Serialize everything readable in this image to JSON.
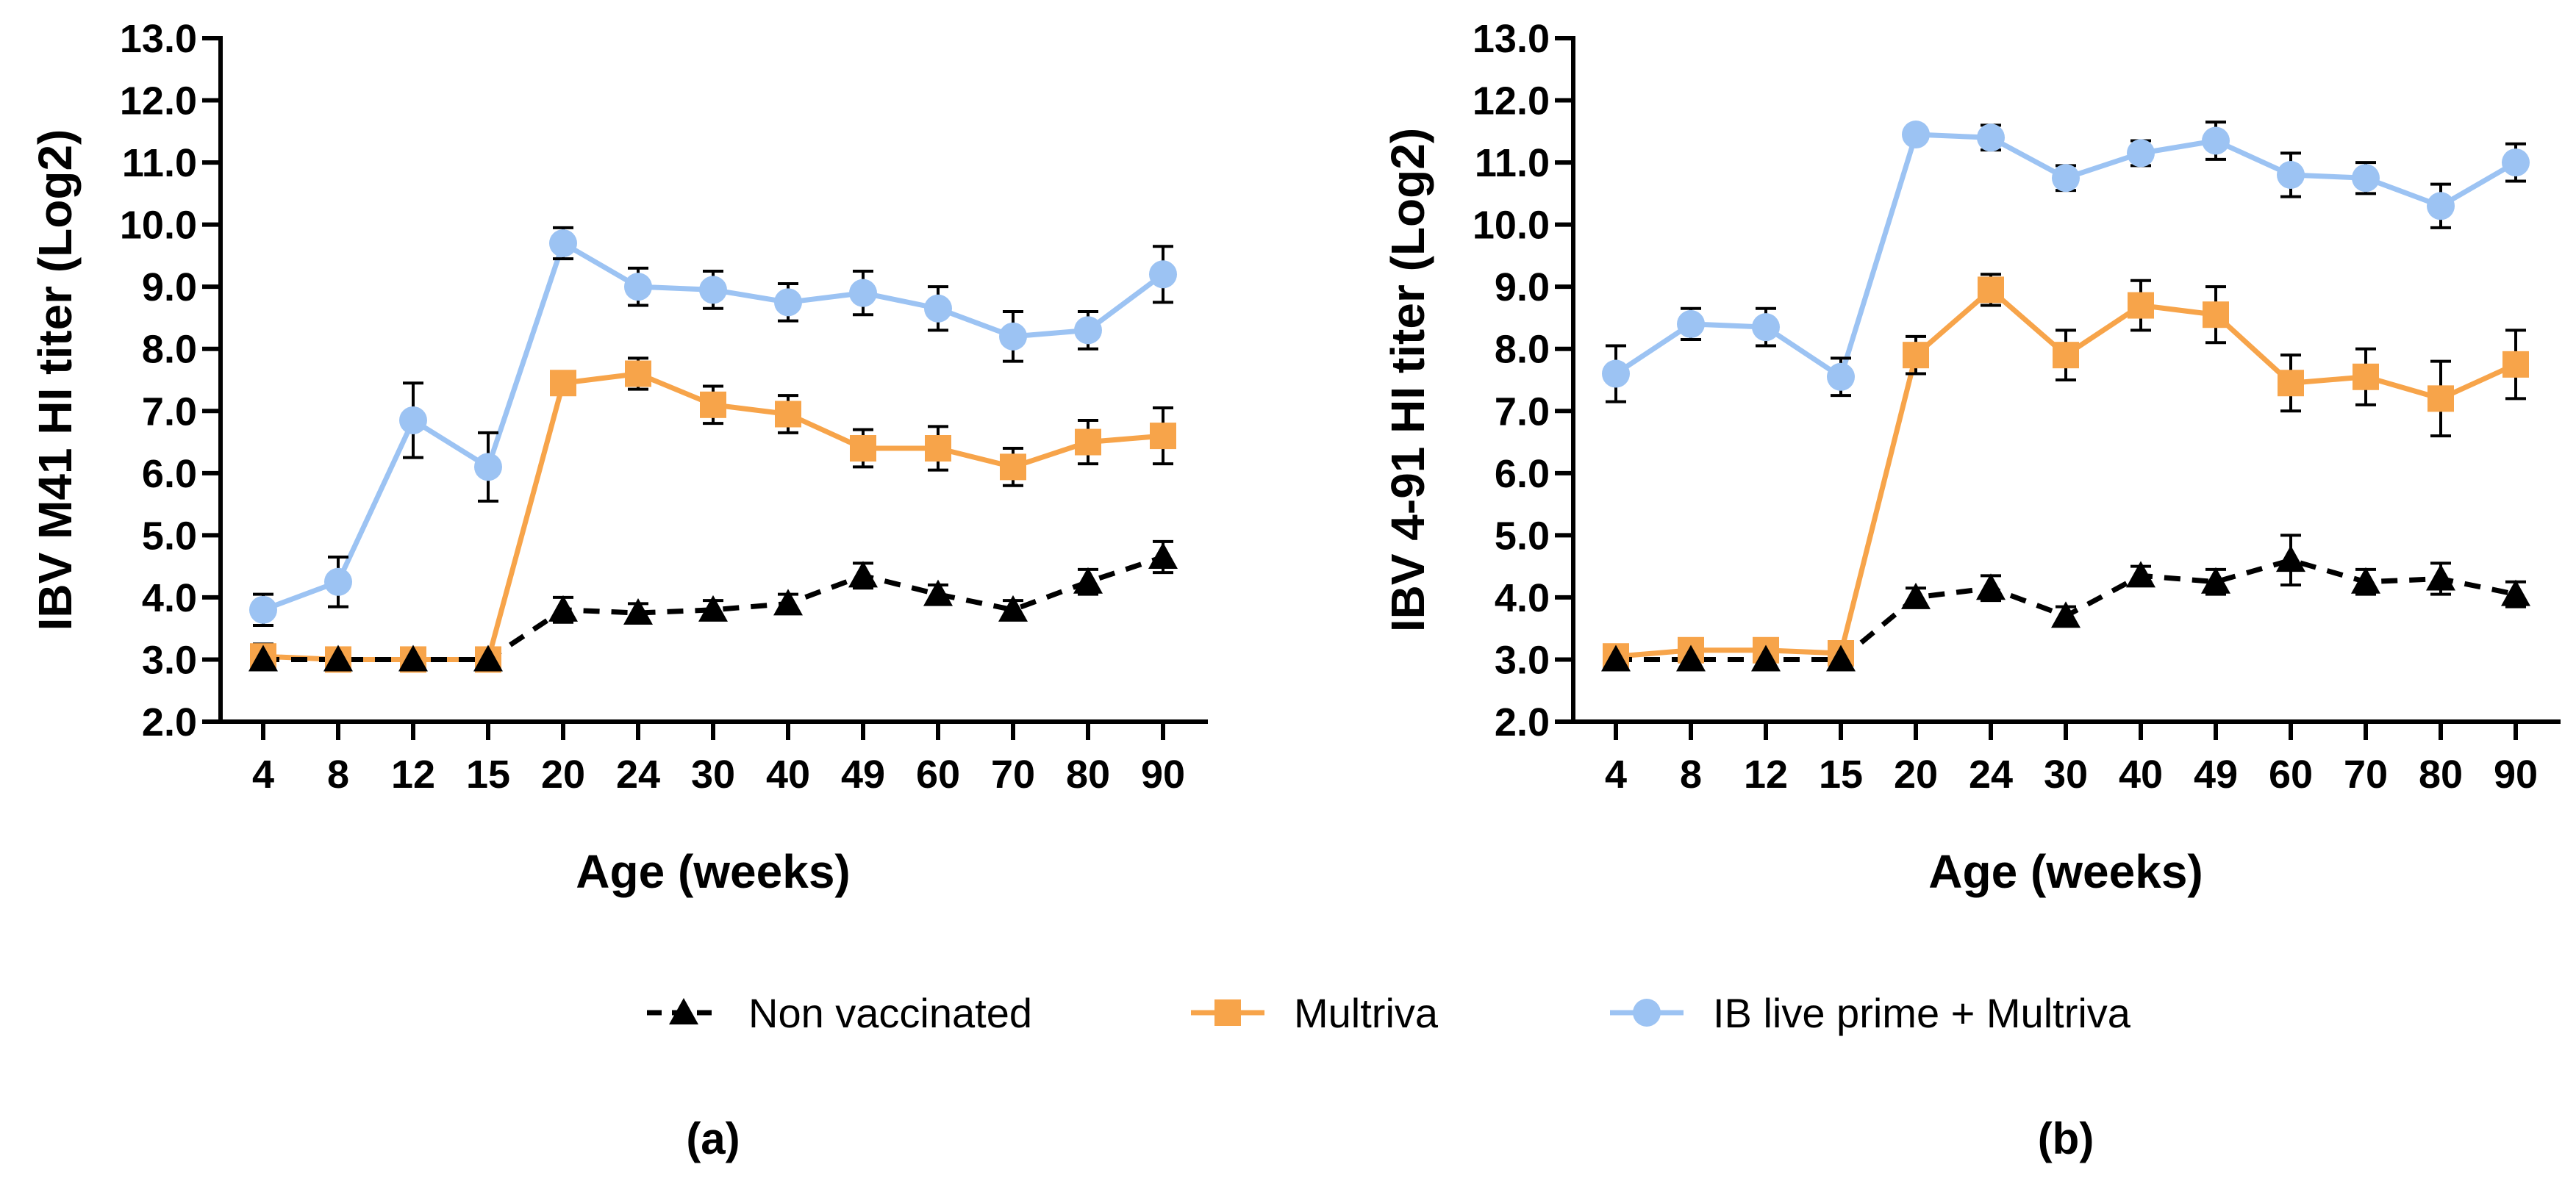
{
  "chart_data": [
    {
      "type": "line",
      "panel_label": "(a)",
      "title": "",
      "xlabel": "Age (weeks)",
      "ylabel": "IBV M41 HI titer (Log2)",
      "categories": [
        "4",
        "8",
        "12",
        "15",
        "20",
        "24",
        "30",
        "40",
        "49",
        "60",
        "70",
        "80",
        "90"
      ],
      "ylim": [
        2.0,
        13.0
      ],
      "yticks": [
        "2.0",
        "3.0",
        "4.0",
        "5.0",
        "6.0",
        "7.0",
        "8.0",
        "9.0",
        "10.0",
        "11.0",
        "12.0",
        "13.0"
      ],
      "series": [
        {
          "name": "Non vaccinated",
          "color": "#000000",
          "marker": "triangle",
          "dashed": true,
          "values": [
            3.0,
            3.0,
            3.0,
            3.0,
            3.8,
            3.75,
            3.8,
            3.9,
            4.35,
            4.05,
            3.8,
            4.25,
            4.65
          ],
          "errors": [
            0.1,
            0.05,
            0.05,
            0.05,
            0.2,
            0.15,
            0.15,
            0.15,
            0.2,
            0.15,
            0.15,
            0.2,
            0.25
          ]
        },
        {
          "name": "Multriva",
          "color": "#f7a44a",
          "marker": "square",
          "dashed": false,
          "values": [
            3.05,
            3.0,
            3.0,
            3.0,
            7.45,
            7.6,
            7.1,
            6.95,
            6.4,
            6.4,
            6.1,
            6.5,
            6.6
          ],
          "errors": [
            0.2,
            0.05,
            0.05,
            0.05,
            0.15,
            0.25,
            0.3,
            0.3,
            0.3,
            0.35,
            0.3,
            0.35,
            0.45
          ]
        },
        {
          "name": "IB live prime + Multriva",
          "color": "#9cc3f3",
          "marker": "circle",
          "dashed": false,
          "values": [
            3.8,
            4.25,
            6.85,
            6.1,
            9.7,
            9.0,
            8.95,
            8.75,
            8.9,
            8.65,
            8.2,
            8.3,
            9.2
          ],
          "errors": [
            0.25,
            0.4,
            0.6,
            0.55,
            0.25,
            0.3,
            0.3,
            0.3,
            0.35,
            0.35,
            0.4,
            0.3,
            0.45
          ]
        }
      ]
    },
    {
      "type": "line",
      "panel_label": "(b)",
      "title": "",
      "xlabel": "Age (weeks)",
      "ylabel": "IBV 4-91 HI titer (Log2)",
      "categories": [
        "4",
        "8",
        "12",
        "15",
        "20",
        "24",
        "30",
        "40",
        "49",
        "60",
        "70",
        "80",
        "90"
      ],
      "ylim": [
        2.0,
        13.0
      ],
      "yticks": [
        "2.0",
        "3.0",
        "4.0",
        "5.0",
        "6.0",
        "7.0",
        "8.0",
        "9.0",
        "10.0",
        "11.0",
        "12.0",
        "13.0"
      ],
      "series": [
        {
          "name": "Non vaccinated",
          "color": "#000000",
          "marker": "triangle",
          "dashed": true,
          "values": [
            3.0,
            3.0,
            3.0,
            3.0,
            4.0,
            4.15,
            3.7,
            4.35,
            4.25,
            4.6,
            4.25,
            4.3,
            4.05
          ],
          "errors": [
            0.1,
            0.1,
            0.1,
            0.1,
            0.15,
            0.2,
            0.15,
            0.15,
            0.2,
            0.4,
            0.2,
            0.25,
            0.2
          ]
        },
        {
          "name": "Multriva",
          "color": "#f7a44a",
          "marker": "square",
          "dashed": false,
          "values": [
            3.05,
            3.15,
            3.15,
            3.1,
            7.9,
            8.95,
            7.9,
            8.7,
            8.55,
            7.45,
            7.55,
            7.2,
            7.75
          ],
          "errors": [
            0.1,
            0.1,
            0.1,
            0.1,
            0.3,
            0.25,
            0.4,
            0.4,
            0.45,
            0.45,
            0.45,
            0.6,
            0.55
          ]
        },
        {
          "name": "IB live prime + Multriva",
          "color": "#9cc3f3",
          "marker": "circle",
          "dashed": false,
          "values": [
            7.6,
            8.4,
            8.35,
            7.55,
            11.45,
            11.4,
            10.75,
            11.15,
            11.35,
            10.8,
            10.75,
            10.3,
            11.0
          ],
          "errors": [
            0.45,
            0.25,
            0.3,
            0.3,
            0.1,
            0.2,
            0.2,
            0.2,
            0.3,
            0.35,
            0.25,
            0.35,
            0.3
          ]
        }
      ]
    }
  ],
  "legend": {
    "placement": "bottom-center",
    "items": [
      "Non vaccinated",
      "Multriva",
      "IB live prime + Multriva"
    ]
  }
}
